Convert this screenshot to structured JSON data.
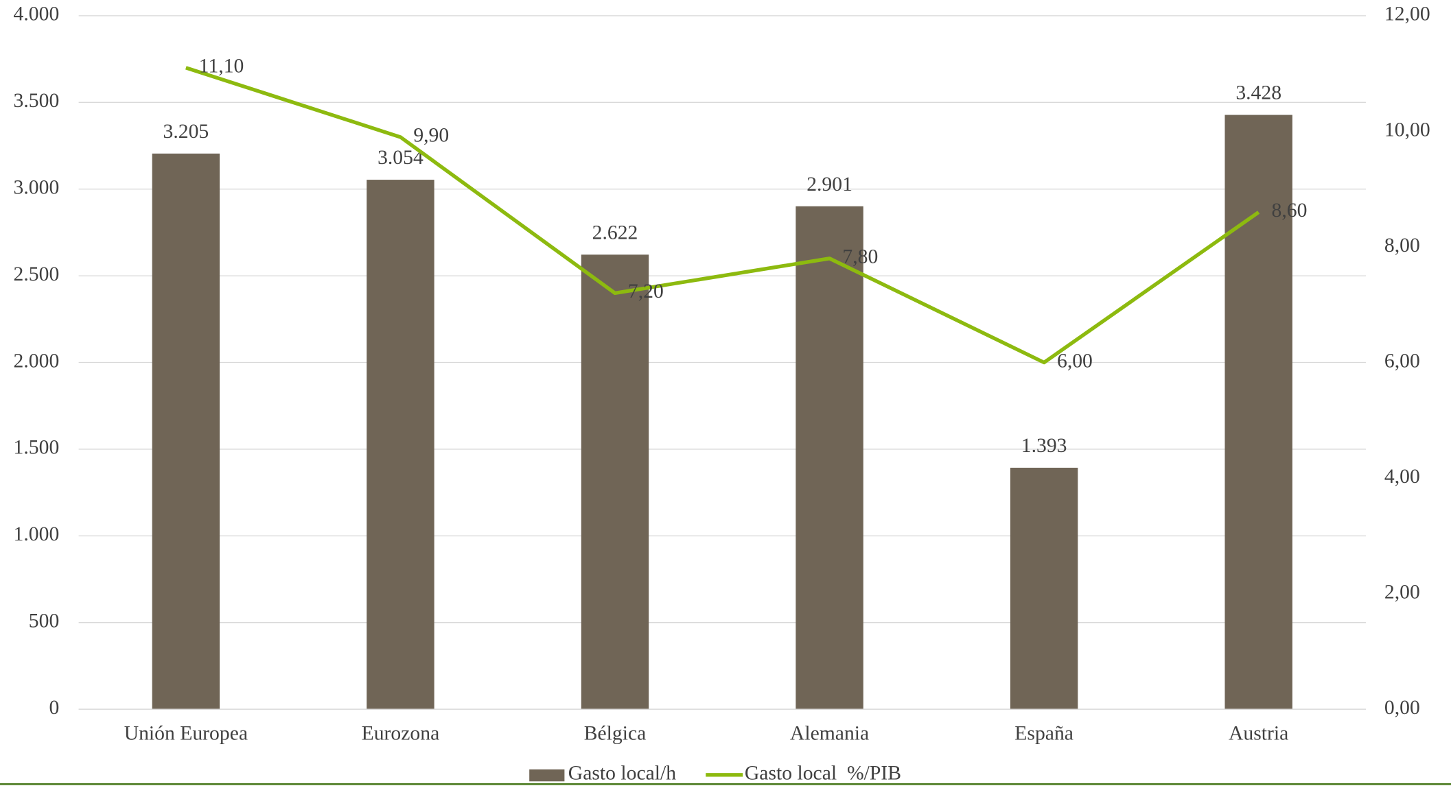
{
  "chart_data": {
    "type": "bar_line",
    "categories": [
      "Unión Europea",
      "Eurozona",
      "Bélgica",
      "Alemania",
      "España",
      "Austria"
    ],
    "series": [
      {
        "name": "Gasto local/h",
        "type": "bar",
        "color": "#706556",
        "values": [
          3205,
          3054,
          2622,
          2901,
          1393,
          3428
        ],
        "value_labels": [
          "3.205",
          "3.054",
          "2.622",
          "2.901",
          "1.393",
          "3.428"
        ]
      },
      {
        "name": "Gasto local  %/PIB",
        "type": "line",
        "axis": "y2",
        "color": "#8dba0f",
        "values": [
          11.1,
          9.9,
          7.2,
          7.8,
          6.0,
          8.6
        ],
        "value_labels": [
          "11,10",
          "9,90",
          "7,20",
          "7,80",
          "6,00",
          "8,60"
        ]
      }
    ],
    "ylim": [
      0,
      4000
    ],
    "yticks": [
      0,
      500,
      {
        "value": 1000,
        "label": "1.000"
      },
      {
        "value": 1500,
        "label": "1.500"
      },
      {
        "value": 2000,
        "label": "2.000"
      },
      {
        "value": 2500,
        "label": "2.500"
      },
      {
        "value": 3000,
        "label": "3.000"
      },
      {
        "value": 3500,
        "label": "3.500"
      },
      {
        "value": 4000,
        "label": "4.000"
      }
    ],
    "y2lim": [
      0,
      12
    ],
    "y2ticks": [
      {
        "value": 0,
        "label": "0,00"
      },
      {
        "value": 2,
        "label": "2,00"
      },
      {
        "value": 4,
        "label": "4,00"
      },
      {
        "value": 6,
        "label": "6,00"
      },
      {
        "value": 8,
        "label": "8,00"
      },
      {
        "value": 10,
        "label": "10,00"
      },
      {
        "value": 12,
        "label": "12,00"
      }
    ],
    "grid": true,
    "legend": "bottom"
  }
}
